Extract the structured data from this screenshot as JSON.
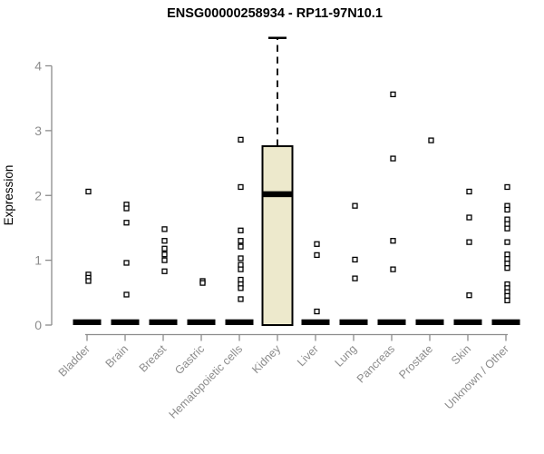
{
  "page": {
    "background": "#ffffff"
  },
  "chart_data": {
    "type": "box",
    "title": "ENSG00000258934 - RP11-97N10.1",
    "ylabel": "Expression",
    "xlabel": "",
    "ylim": [
      0,
      4
    ],
    "yticks": [
      0,
      1,
      2,
      3,
      4
    ],
    "grid": false,
    "legend": "none",
    "colors": {
      "box_fill": "#ede9cc",
      "box_stroke": "#000000",
      "median": "#000000",
      "axis": "#8c8c8c",
      "title": "#000000",
      "point_stroke": "#000000",
      "point_fill": "#ffffff"
    },
    "categories": [
      "Bladder",
      "Brain",
      "Breast",
      "Gastric",
      "Hematopoietic cells",
      "Kidney",
      "Liver",
      "Lung",
      "Pancreas",
      "Prostate",
      "Skin",
      "Unknown / Other"
    ],
    "series": [
      {
        "category": "Bladder",
        "box": {
          "q1": 0,
          "median": 0,
          "q3": 0
        },
        "points": [
          2.06,
          0.78,
          0.73,
          0.68
        ]
      },
      {
        "category": "Brain",
        "box": {
          "q1": 0,
          "median": 0,
          "q3": 0
        },
        "points": [
          1.86,
          1.8,
          1.58,
          0.96,
          0.47
        ]
      },
      {
        "category": "Breast",
        "box": {
          "q1": 0,
          "median": 0,
          "q3": 0
        },
        "points": [
          1.48,
          1.3,
          1.18,
          1.09,
          1.0,
          0.83
        ]
      },
      {
        "category": "Gastric",
        "box": {
          "q1": 0,
          "median": 0,
          "q3": 0
        },
        "points": [
          0.68,
          0.65
        ]
      },
      {
        "category": "Hematopoietic cells",
        "box": {
          "q1": 0,
          "median": 0,
          "q3": 0
        },
        "points": [
          2.86,
          2.13,
          1.46,
          1.3,
          1.21,
          1.03,
          0.93,
          0.86,
          0.7,
          0.63,
          0.57,
          0.4
        ]
      },
      {
        "category": "Kidney",
        "box": {
          "q1": 0,
          "median": 2.02,
          "q3": 2.76,
          "whisker_high": 4.43,
          "whisker_low": 0
        },
        "points": []
      },
      {
        "category": "Liver",
        "box": {
          "q1": 0,
          "median": 0,
          "q3": 0
        },
        "points": [
          1.25,
          1.08,
          0.21
        ]
      },
      {
        "category": "Lung",
        "box": {
          "q1": 0,
          "median": 0,
          "q3": 0
        },
        "points": [
          1.84,
          1.01,
          0.72
        ]
      },
      {
        "category": "Pancreas",
        "box": {
          "q1": 0,
          "median": 0,
          "q3": 0
        },
        "points": [
          3.56,
          2.57,
          1.3,
          0.86
        ]
      },
      {
        "category": "Prostate",
        "box": {
          "q1": 0,
          "median": 0,
          "q3": 0
        },
        "points": [
          2.85
        ]
      },
      {
        "category": "Skin",
        "box": {
          "q1": 0,
          "median": 0,
          "q3": 0
        },
        "points": [
          2.06,
          1.66,
          1.28,
          0.46
        ]
      },
      {
        "category": "Unknown / Other",
        "box": {
          "q1": 0,
          "median": 0,
          "q3": 0
        },
        "points": [
          2.13,
          1.84,
          1.78,
          1.63,
          1.56,
          1.49,
          1.28,
          1.09,
          1.02,
          0.95,
          0.88,
          0.63,
          0.57,
          0.51,
          0.45,
          0.38
        ]
      }
    ]
  }
}
